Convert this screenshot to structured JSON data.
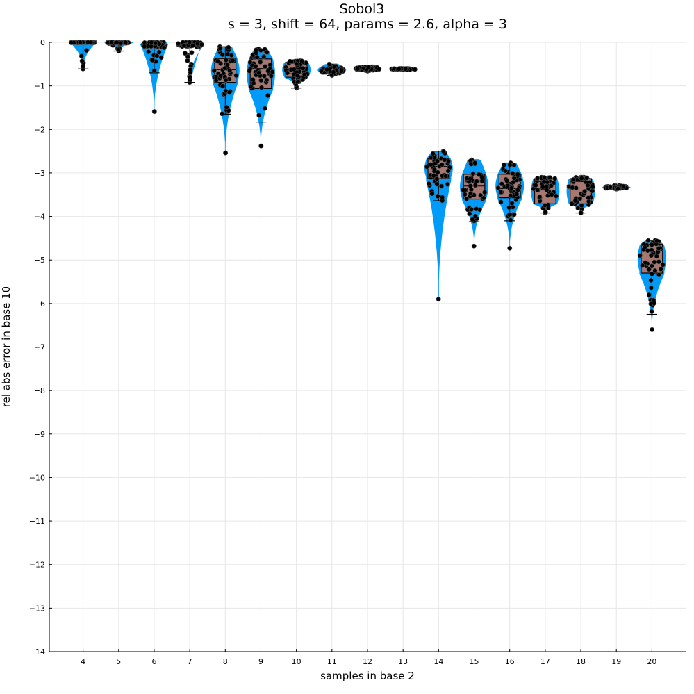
{
  "chart_data": {
    "type": "violin-box-scatter",
    "title": "Sobol3",
    "subtitle": "s = 3, shift = 64, params = 2.6, alpha = 3",
    "xlabel": "samples in base 2",
    "ylabel": "rel abs error in base 10",
    "ylim": [
      -14,
      0
    ],
    "xlim": [
      3.05,
      20.95
    ],
    "grid": true,
    "legend": "none",
    "colors": {
      "violin": "#009af9",
      "box": "#a87870",
      "points": "#000000"
    },
    "categories": [
      "4",
      "5",
      "6",
      "7",
      "8",
      "9",
      "10",
      "11",
      "12",
      "13",
      "14",
      "15",
      "16",
      "17",
      "18",
      "19",
      "20"
    ],
    "distributions": [
      {
        "x": 4,
        "min": -0.61,
        "q1": -0.01,
        "median": 0.0,
        "q3": 0.0,
        "max": 0.0,
        "whisker_low": -0.61,
        "whisker_high": 0.0
      },
      {
        "x": 5,
        "min": -0.2,
        "q1": -0.02,
        "median": -0.01,
        "q3": 0.0,
        "max": 0.0,
        "whisker_low": -0.2,
        "whisker_high": 0.0
      },
      {
        "x": 6,
        "min": -1.59,
        "q1": -0.1,
        "median": -0.03,
        "q3": 0.0,
        "max": 0.0,
        "whisker_low": -0.7,
        "whisker_high": 0.0
      },
      {
        "x": 7,
        "min": -0.92,
        "q1": -0.1,
        "median": -0.03,
        "q3": 0.0,
        "max": 0.0,
        "whisker_low": -0.92,
        "whisker_high": 0.0
      },
      {
        "x": 8,
        "min": -2.54,
        "q1": -0.92,
        "median": -0.63,
        "q3": -0.37,
        "max": -0.1,
        "whisker_low": -1.65,
        "whisker_high": -0.1
      },
      {
        "x": 9,
        "min": -2.38,
        "q1": -1.06,
        "median": -0.6,
        "q3": -0.38,
        "max": -0.15,
        "whisker_low": -1.83,
        "whisker_high": -0.15
      },
      {
        "x": 10,
        "min": -1.05,
        "q1": -0.8,
        "median": -0.72,
        "q3": -0.46,
        "max": -0.42,
        "whisker_low": -1.05,
        "whisker_high": -0.42
      },
      {
        "x": 11,
        "min": -0.76,
        "q1": -0.7,
        "median": -0.64,
        "q3": -0.57,
        "max": -0.5,
        "whisker_low": -0.76,
        "whisker_high": -0.5
      },
      {
        "x": 12,
        "min": -0.66,
        "q1": -0.63,
        "median": -0.61,
        "q3": -0.58,
        "max": -0.56,
        "whisker_low": -0.66,
        "whisker_high": -0.56
      },
      {
        "x": 13,
        "min": -0.63,
        "q1": -0.625,
        "median": -0.61,
        "q3": -0.605,
        "max": -0.6,
        "whisker_low": -0.63,
        "whisker_high": -0.6
      },
      {
        "x": 14,
        "min": -5.9,
        "q1": -3.13,
        "median": -2.85,
        "q3": -2.67,
        "max": -2.5,
        "whisker_low": -3.64,
        "whisker_high": -2.5
      },
      {
        "x": 15,
        "min": -4.68,
        "q1": -3.6,
        "median": -3.3,
        "q3": -3.03,
        "max": -2.7,
        "whisker_low": -4.12,
        "whisker_high": -2.7
      },
      {
        "x": 16,
        "min": -4.73,
        "q1": -3.57,
        "median": -3.36,
        "q3": -3.03,
        "max": -2.77,
        "whisker_low": -4.1,
        "whisker_high": -2.77
      },
      {
        "x": 17,
        "min": -3.92,
        "q1": -3.71,
        "median": -3.2,
        "q3": -3.13,
        "max": -3.1,
        "whisker_low": -3.92,
        "whisker_high": -3.1
      },
      {
        "x": 18,
        "min": -3.92,
        "q1": -3.71,
        "median": -3.2,
        "q3": -3.13,
        "max": -3.1,
        "whisker_low": -3.92,
        "whisker_high": -3.1
      },
      {
        "x": 19,
        "min": -3.37,
        "q1": -3.35,
        "median": -3.33,
        "q3": -3.31,
        "max": -3.29,
        "whisker_low": -3.37,
        "whisker_high": -3.29
      },
      {
        "x": 20,
        "min": -6.6,
        "q1": -5.3,
        "median": -4.86,
        "q3": -4.64,
        "max": -4.55,
        "whisker_low": -6.25,
        "whisker_high": -4.55
      }
    ],
    "yticks": [
      "0",
      "−1",
      "−2",
      "−3",
      "−4",
      "−5",
      "−6",
      "−7",
      "−8",
      "−9",
      "−10",
      "−11",
      "−12",
      "−13",
      "−14"
    ]
  }
}
